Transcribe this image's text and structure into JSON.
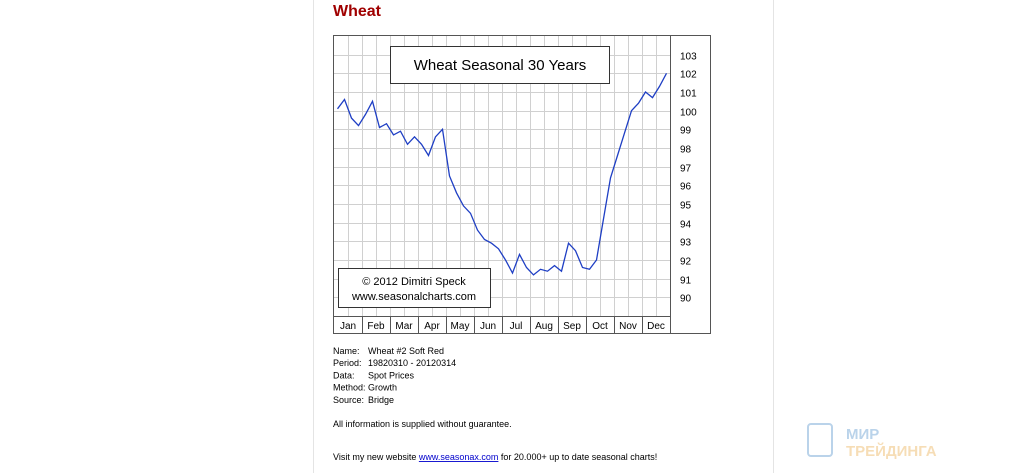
{
  "heading": "Wheat",
  "chart_data": {
    "type": "line",
    "title": "Wheat Seasonal 30 Years",
    "credit": [
      "© 2012  Dimitri Speck",
      "www.seasonalcharts.com"
    ],
    "x_labels": [
      "Jan",
      "Feb",
      "Mar",
      "Apr",
      "May",
      "Jun",
      "Jul",
      "Aug",
      "Sep",
      "Oct",
      "Nov",
      "Dec"
    ],
    "series": [
      {
        "name": "Wheat",
        "color": "#1f3fc4",
        "values": [
          100.1,
          100.6,
          99.6,
          99.2,
          99.8,
          100.5,
          99.1,
          99.3,
          98.7,
          98.9,
          98.2,
          98.6,
          98.2,
          97.6,
          98.6,
          99.0,
          96.5,
          95.6,
          94.9,
          94.5,
          93.6,
          93.1,
          92.9,
          92.6,
          92.0,
          91.3,
          92.3,
          91.6,
          91.2,
          91.5,
          91.4,
          91.7,
          91.4,
          92.9,
          92.5,
          91.6,
          91.5,
          92.0,
          94.2,
          96.4,
          97.6,
          98.8,
          100.0,
          100.4,
          101.0,
          100.7,
          101.3,
          102.0
        ]
      }
    ],
    "ylim": [
      89,
      104
    ],
    "yticks": [
      90,
      91,
      92,
      93,
      94,
      95,
      96,
      97,
      98,
      99,
      100,
      101,
      102,
      103
    ],
    "grid": true
  },
  "info": [
    [
      "Name:",
      "Wheat #2 Soft Red"
    ],
    [
      "Period:",
      "19820310 - 20120314"
    ],
    [
      "Data:",
      "Spot Prices"
    ],
    [
      "Method:",
      "Growth"
    ],
    [
      "Source:",
      "Bridge"
    ]
  ],
  "disclaimer": "All information is supplied without guarantee.",
  "visit": {
    "before": "Visit my new website ",
    "link": "www.seasonax.com",
    "after": " for 20.000+ up to date seasonal charts!"
  },
  "watermark": [
    "МИР",
    "ТРЕЙДИНГА"
  ]
}
